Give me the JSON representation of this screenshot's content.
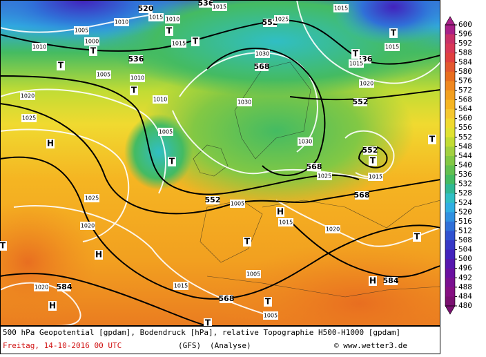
{
  "map": {
    "legend": {
      "labels": [
        600,
        596,
        592,
        588,
        584,
        580,
        576,
        572,
        568,
        564,
        560,
        556,
        552,
        548,
        544,
        540,
        536,
        532,
        528,
        524,
        520,
        516,
        512,
        508,
        504,
        500,
        496,
        492,
        488,
        484,
        480
      ],
      "colors": [
        "#a82088",
        "#c83068",
        "#d83858",
        "#e04040",
        "#e35830",
        "#e86e20",
        "#ef8820",
        "#f2a020",
        "#f5b522",
        "#f5c830",
        "#f0da30",
        "#e0e232",
        "#c2dc34",
        "#a2d040",
        "#82c844",
        "#62c050",
        "#44bb62",
        "#30b894",
        "#30bec4",
        "#30aee2",
        "#3090e0",
        "#3070d8",
        "#3052d0",
        "#3638c6",
        "#4222bc",
        "#5616ae",
        "#6a10a0",
        "#7a1090",
        "#861082",
        "#7a1070"
      ]
    },
    "contour_labels": [
      520,
      1015,
      1010,
      536,
      1015,
      1005,
      1010,
      1000,
      1010,
      536,
      1015,
      552,
      1025,
      1015,
      568,
      1030,
      536,
      1015,
      1020,
      552,
      1015,
      1005,
      1010,
      1020,
      1025,
      1010,
      1030,
      1005,
      1030,
      552,
      568,
      1025,
      1015,
      552,
      1005,
      568,
      1015,
      1025,
      1020,
      1020,
      1005,
      1015,
      568,
      1020,
      584,
      584,
      1005
    ],
    "symbols": [
      "H",
      "T",
      "T",
      "T",
      "H",
      "H",
      "T",
      "H",
      "T",
      "H",
      "T",
      "T",
      "T",
      "T",
      "T",
      "T",
      "T",
      "T",
      "T",
      "T"
    ],
    "caption": {
      "line1": "500 hPa Geopotential [gpdam], Bodendruck [hPa], relative Topographie H500-H1000 [gpdam]",
      "date": "Freitag, 14-10-2016  00 UTC",
      "model": "(GFS)",
      "run": "(Analyse)",
      "credit": "© www.wetter3.de"
    }
  }
}
